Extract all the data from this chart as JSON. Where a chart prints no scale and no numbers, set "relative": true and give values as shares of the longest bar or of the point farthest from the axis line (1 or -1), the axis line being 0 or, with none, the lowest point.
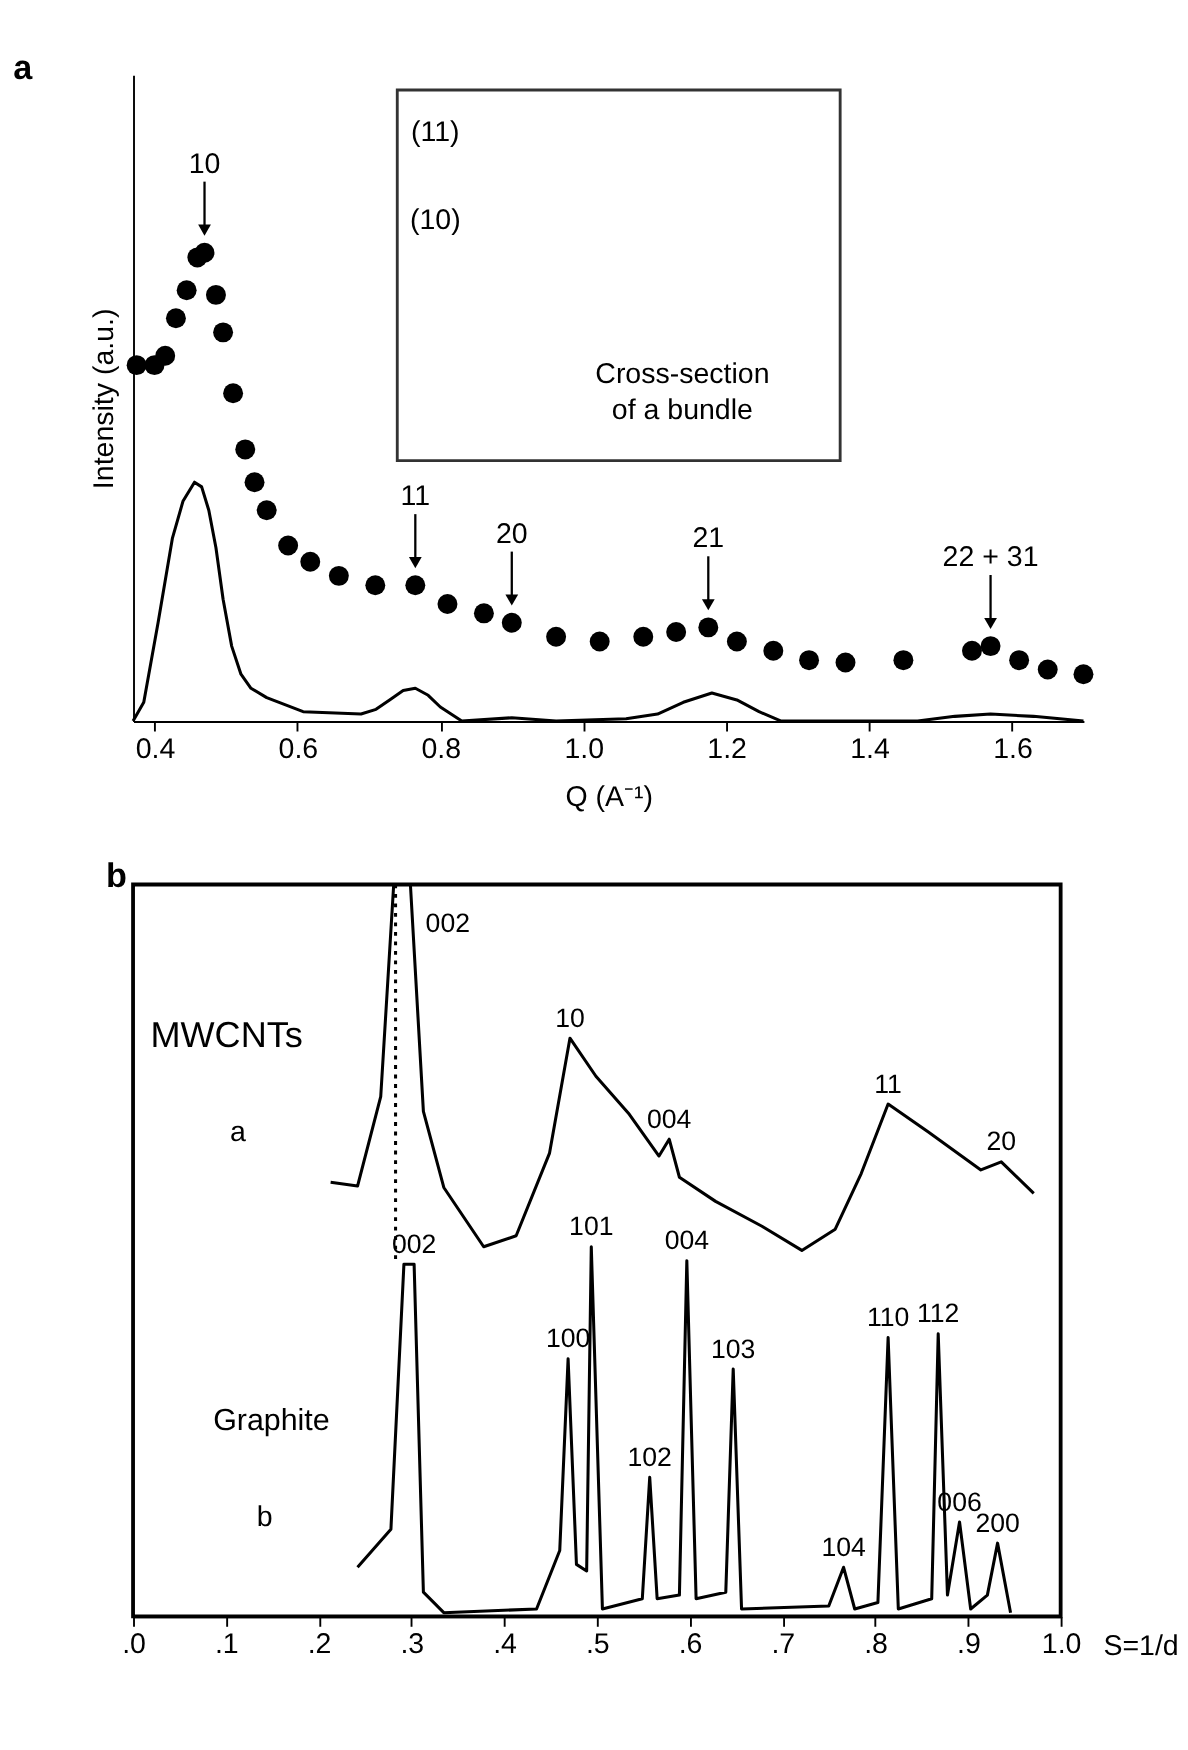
{
  "chart_data": [
    {
      "type": "line",
      "title": "a",
      "xlabel": "Q (A⁻¹)",
      "ylabel": "Intensity (a.u.)",
      "xlim": [
        0.37,
        1.7
      ],
      "xticks": [
        0.4,
        0.6,
        0.8,
        {
          "value": 1,
          "label": "1.0"
        },
        1.2,
        1.4,
        1.6
      ],
      "relative": true,
      "tick_labels": "x",
      "series": [
        {
          "type": "scatter",
          "marker": "circle",
          "color": "#000000",
          "x": [
            0.375,
            0.4,
            0.415,
            0.43,
            0.445,
            0.46,
            0.47,
            0.486,
            0.496,
            0.51,
            0.527,
            0.54,
            0.557,
            0.587,
            0.618,
            0.658,
            0.709,
            0.765,
            0.81,
            0.861,
            0.9,
            0.962,
            1.023,
            1.084,
            1.13,
            1.175,
            1.215,
            1.266,
            1.316,
            1.367,
            1.448,
            1.544,
            1.57,
            1.61,
            1.65,
            1.7
          ],
          "values": [
            0.76,
            0.76,
            0.78,
            0.86,
            0.92,
            0.99,
            1.0,
            0.91,
            0.83,
            0.7,
            0.58,
            0.51,
            0.45,
            0.375,
            0.34,
            0.31,
            0.29,
            0.29,
            0.25,
            0.23,
            0.21,
            0.18,
            0.17,
            0.18,
            0.19,
            0.2,
            0.17,
            0.15,
            0.13,
            0.125,
            0.13,
            0.15,
            0.16,
            0.13,
            0.11,
            0.1
          ]
        },
        {
          "color": "#000000",
          "x": [
            0.37,
            0.385,
            0.405,
            0.425,
            0.44,
            0.456,
            0.466,
            0.476,
            0.486,
            0.496,
            0.508,
            0.521,
            0.535,
            0.557,
            0.608,
            0.689,
            0.71,
            0.729,
            0.748,
            0.765,
            0.783,
            0.8,
            0.83,
            0.9,
            0.962,
            1.06,
            1.104,
            1.14,
            1.18,
            1.215,
            1.246,
            1.277,
            1.468,
            1.52,
            1.57,
            1.63,
            1.7
          ],
          "values": [
            0,
            0.04,
            0.21,
            0.39,
            0.47,
            0.51,
            0.5,
            0.45,
            0.37,
            0.26,
            0.16,
            0.1,
            0.07,
            0.05,
            0.02,
            0.015,
            0.025,
            0.045,
            0.065,
            0.07,
            0.055,
            0.03,
            0,
            0.007,
            0,
            0.005,
            0.015,
            0.04,
            0.06,
            0.045,
            0.02,
            0,
            0,
            0.01,
            0.015,
            0.01,
            0
          ]
        }
      ],
      "annotations": [
        {
          "text": "10",
          "x": 0.47,
          "y": 1.0
        },
        {
          "text": "11",
          "x": 0.765,
          "y": 0.29
        },
        {
          "text": "20",
          "x": 0.9,
          "y": 0.21
        },
        {
          "text": "21",
          "x": 1.175,
          "y": 0.2
        },
        {
          "text": "22 + 31",
          "x": 1.57,
          "y": 0.16
        },
        "(11)",
        "(10)",
        "Cross-section\nof a bundle"
      ]
    },
    {
      "type": "line",
      "title": "b",
      "xlabel": "S=1/d",
      "xlim": [
        0,
        1
      ],
      "xticks": [
        {
          "value": 0,
          "label": ".0"
        },
        {
          "value": 0.1,
          "label": ".1"
        },
        {
          "value": 0.2,
          "label": ".2"
        },
        {
          "value": 0.3,
          "label": ".3"
        },
        {
          "value": 0.4,
          "label": ".4"
        },
        {
          "value": 0.5,
          "label": ".5"
        },
        {
          "value": 0.6,
          "label": ".6"
        },
        {
          "value": 0.7,
          "label": ".7"
        },
        {
          "value": 0.8,
          "label": ".8"
        },
        {
          "value": 0.9,
          "label": ".9"
        },
        {
          "value": 1,
          "label": "1.0"
        }
      ],
      "relative": true,
      "tick_labels": "x",
      "series": [
        {
          "name": "MWCNTs",
          "color": "#000000",
          "x": [
            0.213,
            0.242,
            0.267,
            0.281,
            0.299,
            0.313,
            0.335,
            0.378,
            0.413,
            0.449,
            0.471,
            0.499,
            0.535,
            0.567,
            0.578,
            0.589,
            0.628,
            0.678,
            0.721,
            0.757,
            0.785,
            0.814,
            0.857,
            0.914,
            0.936,
            0.971
          ],
          "values": [
            0.593,
            0.588,
            0.71,
            1.0,
            1.0,
            0.69,
            0.586,
            0.505,
            0.52,
            0.633,
            0.79,
            0.738,
            0.686,
            0.629,
            0.652,
            0.6,
            0.567,
            0.533,
            0.5,
            0.529,
            0.605,
            0.7,
            0.662,
            0.61,
            0.621,
            0.578
          ]
        },
        {
          "name": "Graphite",
          "color": "#000000",
          "x": [
            0.242,
            0.278,
            0.292,
            0.303,
            0.313,
            0.335,
            0.435,
            0.46,
            0.469,
            0.478,
            0.489,
            0.494,
            0.506,
            0.549,
            0.557,
            0.565,
            0.589,
            0.597,
            0.607,
            0.639,
            0.647,
            0.656,
            0.75,
            0.766,
            0.778,
            0.803,
            0.814,
            0.825,
            0.861,
            0.868,
            0.878,
            0.891,
            0.903,
            0.921,
            0.932,
            0.946
          ],
          "values": [
            0.067,
            0.119,
            0.481,
            0.481,
            0.033,
            0.005,
            0.01,
            0.09,
            0.352,
            0.071,
            0.062,
            0.505,
            0.01,
            0.024,
            0.19,
            0.024,
            0.029,
            0.486,
            0.024,
            0.033,
            0.338,
            0.01,
            0.014,
            0.067,
            0.01,
            0.019,
            0.381,
            0.01,
            0.024,
            0.386,
            0.029,
            0.129,
            0.01,
            0.029,
            0.1,
            0.005
          ]
        },
        {
          "line_style": "dotted",
          "color": "#000000",
          "x": [
            0.283,
            0.283
          ],
          "values": [
            1.0,
            0.481
          ]
        }
      ],
      "annotations": [
        {
          "text": "002",
          "x": 0.299,
          "y": 1.0
        },
        {
          "text": "10",
          "x": 0.471,
          "y": 0.79
        },
        {
          "text": "004",
          "x": 0.578,
          "y": 0.652
        },
        {
          "text": "11",
          "x": 0.814,
          "y": 0.7
        },
        {
          "text": "20",
          "x": 0.936,
          "y": 0.621
        },
        {
          "text": "002",
          "x": 0.303,
          "y": 0.481
        },
        {
          "text": "101",
          "x": 0.494,
          "y": 0.505
        },
        {
          "text": "004",
          "x": 0.597,
          "y": 0.486
        },
        {
          "text": "100",
          "x": 0.469,
          "y": 0.352
        },
        {
          "text": "103",
          "x": 0.647,
          "y": 0.338
        },
        {
          "text": "102",
          "x": 0.557,
          "y": 0.19
        },
        {
          "text": "110",
          "x": 0.814,
          "y": 0.381
        },
        {
          "text": "112",
          "x": 0.868,
          "y": 0.386
        },
        {
          "text": "006",
          "x": 0.891,
          "y": 0.129
        },
        {
          "text": "104",
          "x": 0.766,
          "y": 0.067
        },
        {
          "text": "200",
          "x": 0.932,
          "y": 0.1
        },
        "a",
        "b"
      ]
    }
  ]
}
